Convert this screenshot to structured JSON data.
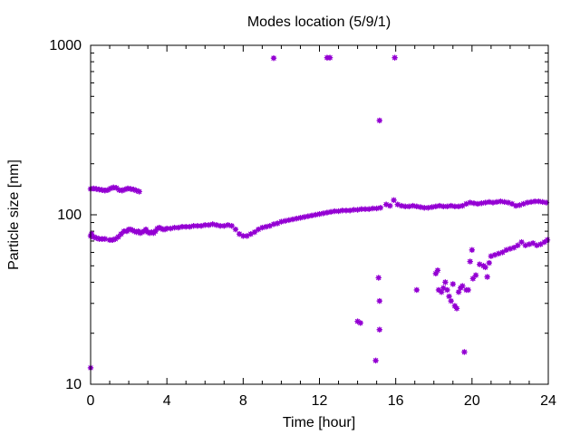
{
  "chart_data": {
    "type": "scatter",
    "title": "Modes location (5/9/1)",
    "xlabel": "Time [hour]",
    "ylabel": "Particle size [nm]",
    "xlim": [
      0,
      24
    ],
    "ylim": [
      10,
      1000
    ],
    "yscale": "log",
    "xticks": [
      0,
      4,
      8,
      12,
      16,
      20,
      24
    ],
    "xtick_labels": [
      "0",
      "4",
      "8",
      "12",
      "16",
      "20",
      "24"
    ],
    "yticks": [
      10,
      100,
      1000
    ],
    "ytick_labels": [
      "10",
      "100",
      "1000"
    ],
    "grid": false,
    "legend": "none",
    "marker_color": "#9400d3",
    "series": [
      {
        "values": [
          [
            0.0,
            12.5
          ],
          [
            0.0,
            75
          ],
          [
            0.05,
            77
          ],
          [
            0.15,
            74
          ],
          [
            0.3,
            73
          ],
          [
            0.45,
            72
          ],
          [
            0.6,
            72
          ],
          [
            0.75,
            72
          ],
          [
            1.0,
            71
          ],
          [
            1.15,
            71
          ],
          [
            1.3,
            72
          ],
          [
            1.45,
            74
          ],
          [
            1.6,
            77
          ],
          [
            1.75,
            80
          ],
          [
            1.9,
            80
          ],
          [
            2.0,
            82
          ],
          [
            2.1,
            82
          ],
          [
            2.2,
            81
          ],
          [
            2.3,
            80
          ],
          [
            2.4,
            79
          ],
          [
            2.5,
            80
          ],
          [
            2.6,
            78
          ],
          [
            2.7,
            79
          ],
          [
            2.8,
            80
          ],
          [
            2.9,
            82
          ],
          [
            3.0,
            79
          ],
          [
            3.1,
            78
          ],
          [
            3.2,
            79
          ],
          [
            3.3,
            78
          ],
          [
            3.4,
            80
          ],
          [
            3.5,
            83
          ],
          [
            3.6,
            84
          ],
          [
            3.7,
            83
          ],
          [
            3.8,
            82
          ],
          [
            3.9,
            82
          ],
          [
            4.0,
            83
          ],
          [
            4.2,
            83
          ],
          [
            4.4,
            84
          ],
          [
            4.6,
            84
          ],
          [
            4.8,
            85
          ],
          [
            5.0,
            85
          ],
          [
            5.2,
            85
          ],
          [
            5.4,
            86
          ],
          [
            5.6,
            86
          ],
          [
            5.8,
            86
          ],
          [
            6.0,
            87
          ],
          [
            6.2,
            87
          ],
          [
            6.4,
            88
          ],
          [
            6.6,
            87
          ],
          [
            6.8,
            86
          ],
          [
            7.0,
            86
          ],
          [
            7.2,
            87
          ],
          [
            7.4,
            86
          ],
          [
            7.6,
            82
          ],
          [
            7.8,
            77
          ],
          [
            8.0,
            75
          ],
          [
            8.2,
            75
          ],
          [
            8.4,
            77
          ],
          [
            8.6,
            79
          ],
          [
            8.8,
            82
          ],
          [
            9.0,
            84
          ],
          [
            9.2,
            85
          ],
          [
            9.4,
            86
          ],
          [
            9.6,
            88
          ],
          [
            9.8,
            89
          ],
          [
            10.0,
            91
          ],
          [
            10.2,
            92
          ],
          [
            10.4,
            93
          ],
          [
            10.6,
            94
          ],
          [
            10.8,
            95
          ],
          [
            11.0,
            96
          ],
          [
            11.2,
            97
          ],
          [
            11.4,
            98
          ],
          [
            11.6,
            99
          ],
          [
            11.8,
            100
          ],
          [
            12.0,
            101
          ],
          [
            12.2,
            102
          ],
          [
            12.4,
            103
          ],
          [
            12.6,
            104
          ],
          [
            12.8,
            105
          ],
          [
            13.0,
            105
          ],
          [
            13.2,
            106
          ],
          [
            13.4,
            106
          ],
          [
            13.6,
            106
          ],
          [
            13.8,
            107
          ],
          [
            14.0,
            107
          ],
          [
            14.2,
            108
          ],
          [
            14.4,
            108
          ],
          [
            14.6,
            108
          ],
          [
            14.8,
            109
          ],
          [
            15.0,
            109
          ],
          [
            15.2,
            110
          ]
        ]
      },
      {
        "values": [
          [
            0.0,
            142
          ],
          [
            0.15,
            143
          ],
          [
            0.3,
            142
          ],
          [
            0.45,
            141
          ],
          [
            0.6,
            140
          ],
          [
            0.75,
            139
          ],
          [
            0.9,
            140
          ],
          [
            1.05,
            143
          ],
          [
            1.2,
            145
          ],
          [
            1.35,
            144
          ],
          [
            1.5,
            140
          ],
          [
            1.65,
            139
          ],
          [
            1.8,
            141
          ],
          [
            1.95,
            143
          ],
          [
            2.1,
            142
          ],
          [
            2.25,
            141
          ],
          [
            2.4,
            139
          ],
          [
            2.55,
            137
          ]
        ]
      },
      {
        "values": [
          [
            9.6,
            840
          ],
          [
            12.4,
            845
          ],
          [
            12.55,
            845
          ],
          [
            15.95,
            845
          ],
          [
            15.15,
            360
          ],
          [
            15.5,
            115
          ],
          [
            15.7,
            113
          ],
          [
            15.9,
            122
          ],
          [
            16.1,
            115
          ],
          [
            16.3,
            113
          ],
          [
            16.5,
            112
          ],
          [
            16.7,
            112
          ],
          [
            16.9,
            113
          ],
          [
            17.1,
            112
          ],
          [
            17.3,
            111
          ],
          [
            17.5,
            110
          ],
          [
            17.7,
            110
          ],
          [
            17.9,
            111
          ],
          [
            18.1,
            112
          ],
          [
            18.3,
            113
          ],
          [
            18.5,
            112
          ],
          [
            18.7,
            112
          ],
          [
            18.9,
            113
          ],
          [
            19.1,
            112
          ],
          [
            19.3,
            112
          ],
          [
            19.5,
            113
          ],
          [
            19.7,
            116
          ],
          [
            19.9,
            118
          ],
          [
            20.1,
            117
          ],
          [
            20.3,
            116
          ],
          [
            20.5,
            117
          ],
          [
            20.7,
            118
          ],
          [
            20.9,
            119
          ],
          [
            21.1,
            118
          ],
          [
            21.3,
            119
          ],
          [
            21.5,
            120
          ],
          [
            21.7,
            119
          ],
          [
            21.9,
            118
          ],
          [
            22.1,
            116
          ],
          [
            22.3,
            113
          ],
          [
            22.5,
            114
          ],
          [
            22.7,
            116
          ],
          [
            22.9,
            118
          ],
          [
            23.1,
            119
          ],
          [
            23.3,
            120
          ],
          [
            23.5,
            120
          ],
          [
            23.7,
            119
          ],
          [
            23.9,
            118
          ]
        ]
      },
      {
        "values": [
          [
            14.0,
            23.5
          ],
          [
            14.15,
            23
          ],
          [
            14.95,
            13.8
          ],
          [
            15.1,
            42.5
          ],
          [
            15.15,
            31
          ],
          [
            15.15,
            21
          ],
          [
            17.1,
            36
          ],
          [
            18.1,
            45
          ],
          [
            18.2,
            47
          ],
          [
            18.25,
            36
          ],
          [
            18.4,
            35
          ],
          [
            18.5,
            37
          ],
          [
            18.6,
            40
          ],
          [
            18.7,
            36
          ],
          [
            18.8,
            33
          ],
          [
            18.9,
            31
          ],
          [
            19.0,
            39
          ],
          [
            19.1,
            29
          ],
          [
            19.2,
            28
          ],
          [
            19.3,
            35
          ],
          [
            19.4,
            37
          ],
          [
            19.5,
            38
          ],
          [
            19.6,
            15.5
          ],
          [
            19.7,
            36
          ],
          [
            19.8,
            36
          ],
          [
            19.9,
            53
          ],
          [
            20.0,
            62
          ],
          [
            20.05,
            42
          ],
          [
            20.2,
            44
          ],
          [
            20.4,
            51
          ],
          [
            20.6,
            50
          ],
          [
            20.7,
            49
          ],
          [
            20.8,
            43
          ],
          [
            20.9,
            52
          ],
          [
            21.0,
            57
          ],
          [
            21.2,
            58
          ],
          [
            21.4,
            59
          ],
          [
            21.6,
            60
          ],
          [
            21.8,
            62
          ],
          [
            22.0,
            63
          ],
          [
            22.2,
            64
          ],
          [
            22.4,
            66
          ],
          [
            22.6,
            69
          ],
          [
            22.8,
            66
          ],
          [
            23.0,
            67
          ],
          [
            23.2,
            68
          ],
          [
            23.4,
            66
          ],
          [
            23.6,
            67
          ],
          [
            23.8,
            69
          ],
          [
            23.95,
            71
          ]
        ]
      }
    ]
  }
}
